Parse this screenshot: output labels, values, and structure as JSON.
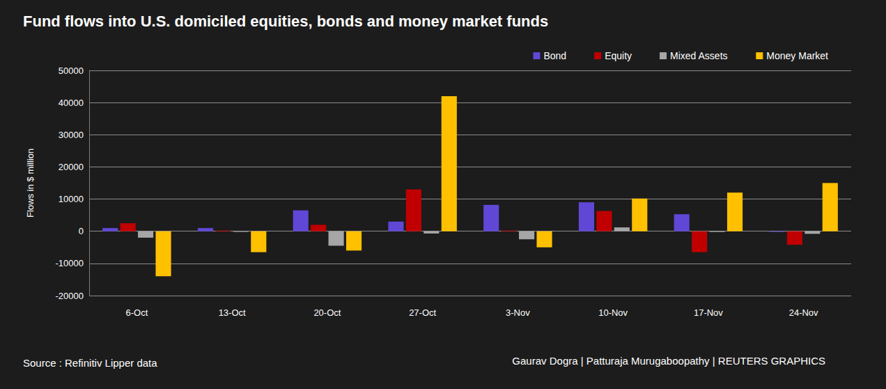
{
  "chart_data": {
    "type": "bar",
    "title": "Fund flows into U.S. domiciled equities, bonds and money market funds",
    "y_label": "Flows in $ million",
    "source": "Source : Refinitiv Lipper data",
    "credit": "Gaurav Dogra | Patturaja Murugaboopathy | REUTERS GRAPHICS",
    "categories": [
      "6-Oct",
      "13-Oct",
      "20-Oct",
      "27-Oct",
      "3-Nov",
      "10-Nov",
      "17-Nov",
      "24-Nov"
    ],
    "series": [
      {
        "name": "Bond",
        "color": "#6047d6",
        "values": [
          1000,
          1000,
          6500,
          3000,
          8200,
          9000,
          5300,
          -200
        ]
      },
      {
        "name": "Equity",
        "color": "#c00000",
        "values": [
          2500,
          200,
          2000,
          13000,
          200,
          6300,
          -6500,
          -4200
        ]
      },
      {
        "name": "Mixed Assets",
        "color": "#a6a6a6",
        "values": [
          -2000,
          -200,
          -4500,
          -700,
          -2500,
          1200,
          -200,
          -800
        ]
      },
      {
        "name": "Money Market",
        "color": "#ffc000",
        "values": [
          -14000,
          -6500,
          -6000,
          42000,
          -5000,
          10200,
          12000,
          15000
        ]
      }
    ],
    "ylim": [
      -20000,
      50000
    ],
    "yticks": [
      -20000,
      -10000,
      0,
      10000,
      20000,
      30000,
      40000,
      50000
    ],
    "grid": true,
    "legend": "top-right"
  }
}
